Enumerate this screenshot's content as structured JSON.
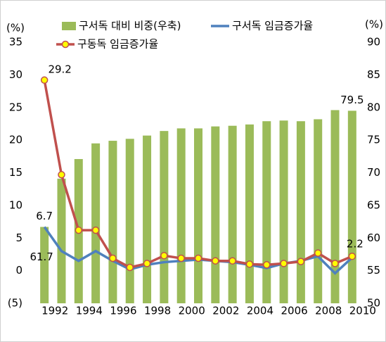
{
  "chart_data": {
    "type": "combo",
    "y_label": "(%)",
    "y2_label": "(%)",
    "categories": [
      "1992",
      null,
      "1994",
      null,
      "1996",
      null,
      "1998",
      null,
      "2000",
      null,
      "2002",
      null,
      "2004",
      null,
      "2006",
      null,
      "2008",
      null,
      "2010"
    ],
    "ylim": [
      -5,
      35
    ],
    "yticks": [
      {
        "value": -5,
        "label": "(5)"
      },
      0,
      5,
      10,
      15,
      20,
      25,
      30,
      35
    ],
    "y2lim": [
      50,
      90
    ],
    "y2ticks": [
      50,
      55,
      60,
      65,
      70,
      75,
      80,
      85,
      90
    ],
    "legend": "top",
    "series": [
      {
        "name": "구서독 대비 비중(우축)",
        "type": "bar",
        "axis": "y2",
        "color": "#9bbb59",
        "values": [
          61.7,
          69.1,
          72.1,
          74.5,
          74.9,
          75.2,
          75.7,
          76.4,
          76.8,
          76.8,
          77.1,
          77.2,
          77.4,
          77.9,
          78.0,
          77.9,
          78.2,
          79.6,
          79.5
        ],
        "value_labels": [
          "61.7",
          null,
          null,
          null,
          null,
          null,
          null,
          null,
          null,
          null,
          null,
          null,
          null,
          null,
          null,
          null,
          null,
          null,
          "79.5"
        ]
      },
      {
        "name": "구서독 임금증가율",
        "type": "line",
        "color": "#4f81bd",
        "values": [
          6.7,
          3.0,
          1.5,
          3.0,
          1.5,
          0.2,
          0.9,
          1.3,
          1.5,
          1.7,
          1.5,
          1.3,
          0.9,
          0.4,
          1.1,
          1.5,
          2.2,
          -0.4,
          2.0
        ],
        "value_labels": [
          "6.7",
          null,
          null,
          null,
          null,
          null,
          null,
          null,
          null,
          null,
          null,
          null,
          null,
          null,
          null,
          null,
          null,
          null,
          null
        ]
      },
      {
        "name": "구동독 임금증가율",
        "type": "line",
        "color": "#c0504d",
        "marker_color": "#ffff00",
        "values": [
          29.2,
          14.7,
          6.2,
          6.2,
          1.9,
          0.5,
          1.1,
          2.3,
          1.9,
          1.9,
          1.5,
          1.5,
          1.0,
          0.9,
          1.1,
          1.4,
          2.7,
          1.1,
          2.2
        ],
        "value_labels": [
          "29.2",
          null,
          null,
          null,
          null,
          null,
          null,
          null,
          null,
          null,
          null,
          null,
          null,
          null,
          null,
          null,
          null,
          null,
          "2.2"
        ]
      }
    ]
  }
}
